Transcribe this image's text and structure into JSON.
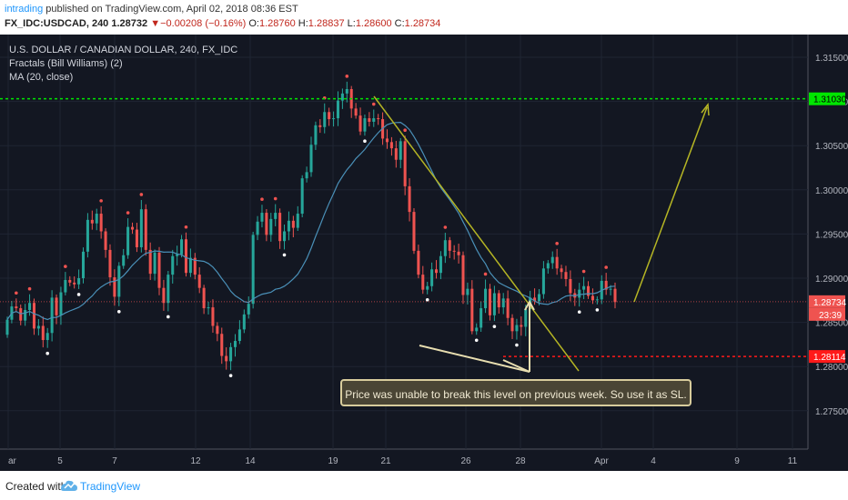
{
  "header": {
    "author": "intrading",
    "published_text": "published on TradingView.com, April 02, 2018 08:36 EST",
    "symbol": "FX_IDC:USDCAD, 240",
    "last": "1.28732",
    "arrow": "▼",
    "change": "−0.00208 (−0.16%)",
    "o_label": "O:",
    "o": "1.28760",
    "h_label": "H:",
    "h": "1.28837",
    "l_label": "L:",
    "l": "1.28600",
    "c_label": "C:",
    "c": "1.28734"
  },
  "legend": {
    "title": "U.S. DOLLAR / CANADIAN DOLLAR, 240, FX_IDC",
    "ind1": "Fractals (Bill Williams) (2)",
    "ind2": "MA (20, close)"
  },
  "annotation": "Price was unable to break this level on previous week. So use it as SL.",
  "footer": {
    "created": "Created with",
    "brand": "TradingView"
  },
  "colors": {
    "background": "#131722",
    "up": "#26a69a",
    "down": "#ef5350",
    "ma": "#4a90b8",
    "resistance": "#00e600",
    "support": "#ff1a1a",
    "trendline": "#b5b524"
  },
  "chart_data": {
    "type": "candlestick",
    "symbol": "USDCAD",
    "timeframe": "240",
    "ylim": [
      1.2705,
      1.3178
    ],
    "y_ticks": [
      "1.31500",
      "1.31000",
      "1.30500",
      "1.30000",
      "1.29500",
      "1.29000",
      "1.28500",
      "1.28000",
      "1.27500"
    ],
    "x_ticks": [
      "ar",
      "5",
      "7",
      "12",
      "14",
      "19",
      "21",
      "26",
      "28",
      "Apr",
      "4",
      "9",
      "11"
    ],
    "price_labels": [
      {
        "value": 1.3103,
        "label": "1.31030",
        "color": "#00e600"
      },
      {
        "value": 1.28734,
        "label": "1.28734",
        "color": "#ef5350"
      },
      {
        "value": 1.28114,
        "label": "1.28114",
        "color": "#ff1a1a"
      }
    ],
    "countdown": "23:39",
    "horizontal_levels": [
      {
        "name": "resistance",
        "value": 1.3103
      },
      {
        "name": "support",
        "value": 1.28114
      }
    ],
    "closes": [
      1.2853,
      1.2868,
      1.2866,
      1.2852,
      1.2864,
      1.2872,
      1.2843,
      1.2846,
      1.283,
      1.2838,
      1.2878,
      1.2858,
      1.2884,
      1.2898,
      1.2895,
      1.2893,
      1.29,
      1.293,
      1.2966,
      1.2962,
      1.2973,
      1.2953,
      1.2932,
      1.2901,
      1.2879,
      1.2914,
      1.2926,
      1.2958,
      1.2955,
      1.2935,
      1.2978,
      1.2932,
      1.2905,
      1.2929,
      1.2889,
      1.2872,
      1.2904,
      1.2925,
      1.2927,
      1.2944,
      1.2906,
      1.2923,
      1.2904,
      1.2889,
      1.2866,
      1.2867,
      1.2846,
      1.2837,
      1.2812,
      1.2806,
      1.2822,
      1.2829,
      1.2842,
      1.2859,
      1.2871,
      1.2949,
      1.2964,
      1.2974,
      1.2949,
      1.2967,
      1.2974,
      1.2942,
      1.2953,
      1.2965,
      1.2957,
      1.2973,
      1.3013,
      1.302,
      1.3051,
      1.3073,
      1.3071,
      1.3088,
      1.308,
      1.3081,
      1.3101,
      1.3109,
      1.3114,
      1.3092,
      1.3084,
      1.3066,
      1.3081,
      1.3077,
      1.3081,
      1.308,
      1.3058,
      1.3054,
      1.3047,
      1.3034,
      1.3055,
      1.3004,
      1.2975,
      1.2931,
      1.2904,
      1.2887,
      1.2891,
      1.291,
      1.2906,
      1.2925,
      1.2943,
      1.2931,
      1.293,
      1.2926,
      1.2881,
      1.2888,
      1.284,
      1.2844,
      1.2866,
      1.2888,
      1.2858,
      1.2883,
      1.2867,
      1.2877,
      1.2855,
      1.284,
      1.2847,
      1.2845,
      1.2865,
      1.2878,
      1.2874,
      1.2882,
      1.2911,
      1.2917,
      1.2924,
      1.2911,
      1.2907,
      1.2899,
      1.2883,
      1.2878,
      1.2887,
      1.2891,
      1.288,
      1.2875,
      1.2876,
      1.2897,
      1.2887,
      1.2888,
      1.2873
    ]
  }
}
